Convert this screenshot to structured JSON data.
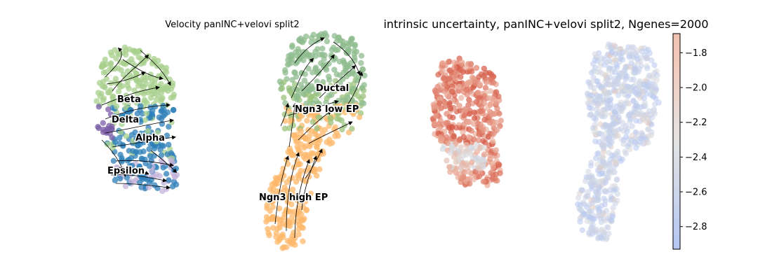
{
  "chart_data": [
    {
      "type": "scatter",
      "title": "Velocity panINC+velovi split2",
      "xlabel": "",
      "ylabel": "",
      "grid": false,
      "overlay": "velocity streamlines with arrowheads",
      "clusters": [
        {
          "name": "Beta",
          "color": "#a8d08d"
        },
        {
          "name": "Delta",
          "color": "#7b5ea7"
        },
        {
          "name": "Alpha",
          "color": "#2c7fb8"
        },
        {
          "name": "Epsilon",
          "color": "#c3b3d9"
        },
        {
          "name": "Ductal",
          "color": "#8fbc8f"
        },
        {
          "name": "Ngn3 low EP",
          "color": "#9cc37e"
        },
        {
          "name": "Ngn3 high EP",
          "color": "#fdb86b"
        }
      ]
    },
    {
      "type": "scatter",
      "title": "intrinsic uncertainty, panINC+velovi split2, Ngenes=2000",
      "xlabel": "",
      "ylabel": "",
      "grid": false,
      "colormap": "coolwarm",
      "colorbar": {
        "range": [
          -2.93,
          -1.69
        ],
        "ticks": [
          "−1.8",
          "−2.0",
          "−2.2",
          "−2.4",
          "−2.6",
          "−2.8"
        ],
        "tick_values": [
          -1.8,
          -2.0,
          -2.2,
          -2.4,
          -2.6,
          -2.8
        ]
      }
    }
  ]
}
